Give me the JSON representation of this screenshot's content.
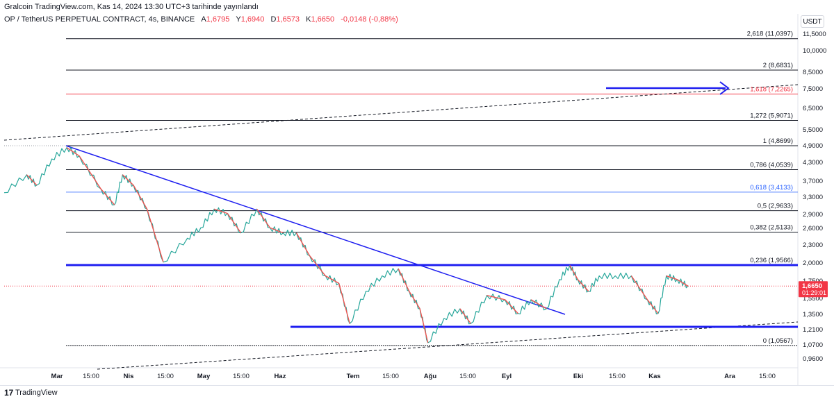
{
  "header": {
    "publisher_line": "Gralcoin TradingView.com, Kas 14, 2024 13:30 UTC+3 tarihinde yayınlandı"
  },
  "legend": {
    "symbol": "OP / TetherUS PERPETUAL CONTRACT, 4s, BINANCE",
    "open_label": "A",
    "open": "1,6795",
    "high_label": "Y",
    "high": "1,6940",
    "low_label": "D",
    "low": "1,6573",
    "close_label": "K",
    "close": "1,6650",
    "change": "-0,0148 (-0,88%)"
  },
  "currency_button": "USDT",
  "footer": {
    "logo": "17",
    "brand": "TradingView"
  },
  "colors": {
    "up": "#26a69a",
    "down": "#ef5350",
    "trend_blue": "#1e1ef0",
    "fib_black": "#131722",
    "fib_red": "#f23645",
    "fib_blue": "#2962ff",
    "price_tag": "#f23645"
  },
  "chart_data": {
    "type": "line",
    "y_scale": "log",
    "y_ticks": [
      "11,5000",
      "10,0000",
      "8,5000",
      "7,5000",
      "6,5000",
      "5,5000",
      "4,9000",
      "4,3000",
      "3,7000",
      "3,3000",
      "2,9000",
      "2,6000",
      "2,3000",
      "2,0000",
      "1,7500",
      "1,5500",
      "1,3500",
      "1,2100",
      "1,0700",
      "0,9600"
    ],
    "x_ticks": [
      "Mar",
      "15:00",
      "Nis",
      "15:00",
      "May",
      "15:00",
      "Haz",
      "Tem",
      "15:00",
      "Ağu",
      "15:00",
      "Eyl",
      "Eki",
      "15:00",
      "Kas",
      "Ara",
      "15:00"
    ],
    "fib_levels": [
      {
        "label": "2,618 (11,0397)",
        "value": 11.0397,
        "color": "black"
      },
      {
        "label": "2 (8,6831)",
        "value": 8.6831,
        "color": "black"
      },
      {
        "label": "1,618 (7,2265)",
        "value": 7.2265,
        "color": "red"
      },
      {
        "label": "1,272 (5,9071)",
        "value": 5.9071,
        "color": "black"
      },
      {
        "label": "1 (4,8699)",
        "value": 4.8699,
        "color": "black"
      },
      {
        "label": "0,786 (4,0539)",
        "value": 4.0539,
        "color": "black"
      },
      {
        "label": "0,618 (3,4133)",
        "value": 3.4133,
        "color": "blue"
      },
      {
        "label": "0,5 (2,9633)",
        "value": 2.9633,
        "color": "black"
      },
      {
        "label": "0,382 (2,5133)",
        "value": 2.5133,
        "color": "black"
      },
      {
        "label": "0,236 (1,9566)",
        "value": 1.9566,
        "color": "black"
      },
      {
        "label": "0 (1,0567)",
        "value": 1.0567,
        "color": "black"
      }
    ],
    "last_price": {
      "price": "1,6650",
      "countdown": "01:29:01",
      "value": 1.665
    },
    "price_series": {
      "x": [
        "Mar-01",
        "Mar-10",
        "Mar-14",
        "Mar-20",
        "Mar-26",
        "Mar-31",
        "Nis-08",
        "Nis-13",
        "Nis-16",
        "Nis-20",
        "Nis-25",
        "May-01",
        "May-10",
        "May-15",
        "May-20",
        "May-25",
        "May-30",
        "Haz-05",
        "Haz-10",
        "Haz-15",
        "Haz-20",
        "Haz-25",
        "Tem-01",
        "Tem-06",
        "Tem-10",
        "Tem-16",
        "Tem-22",
        "Tem-28",
        "Ağu-01",
        "Ağu-05",
        "Ağu-08",
        "Ağu-14",
        "Ağu-20",
        "Ağu-24",
        "Ağu-30",
        "Eyl-06",
        "Eyl-11",
        "Eyl-16",
        "Eyl-22",
        "Eyl-27",
        "Eki-01",
        "Eki-04",
        "Eki-08",
        "Eki-12",
        "Eki-18",
        "Eki-24",
        "Eki-30",
        "Kas-03",
        "Kas-06",
        "Kas-10",
        "Kas-14"
      ],
      "y": [
        3.4,
        3.9,
        3.6,
        4.4,
        4.8,
        4.5,
        3.5,
        3.1,
        3.9,
        3.6,
        3.0,
        2.0,
        2.4,
        2.6,
        3.0,
        2.9,
        2.5,
        3.0,
        2.6,
        2.5,
        2.5,
        2.1,
        1.8,
        1.7,
        1.25,
        1.6,
        1.8,
        1.9,
        1.6,
        1.4,
        1.08,
        1.3,
        1.4,
        1.25,
        1.55,
        1.5,
        1.35,
        1.5,
        1.4,
        1.75,
        1.95,
        1.75,
        1.6,
        1.8,
        1.8,
        1.8,
        1.5,
        1.35,
        1.8,
        1.75,
        1.665
      ]
    },
    "trendlines": [
      {
        "name": "descending-resistance",
        "from": [
          "Mar-01",
          4.87
        ],
        "to": [
          "Eyl-27",
          1.32
        ]
      },
      {
        "name": "horizontal-resistance",
        "from": [
          "Mar-01",
          1.96
        ],
        "to": [
          "Ara-30",
          1.96
        ]
      },
      {
        "name": "horizontal-support",
        "from": [
          "Tem-01",
          1.19
        ],
        "to": [
          "Ara-30",
          1.19
        ]
      },
      {
        "name": "target-arrow",
        "from": [
          "Eki-20",
          7.6
        ],
        "to": [
          "Ara-01",
          7.6
        ]
      }
    ]
  }
}
